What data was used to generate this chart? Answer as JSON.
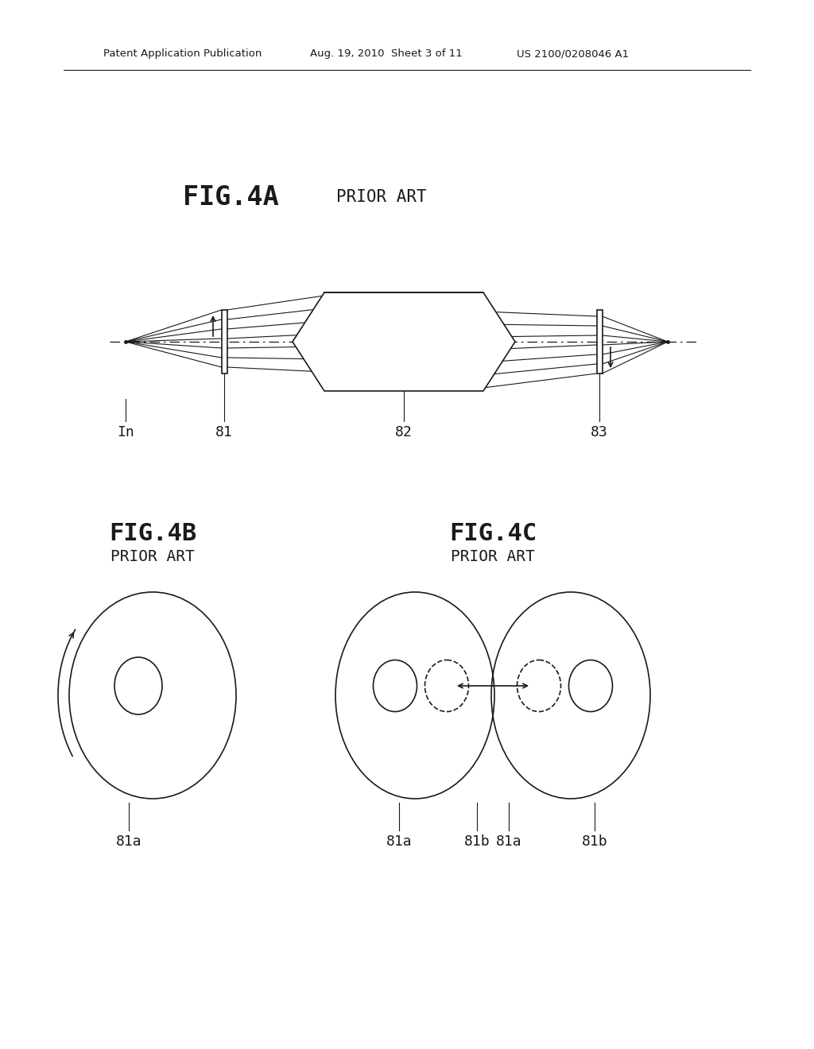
{
  "bg_color": "#ffffff",
  "header_left": "Patent Application Publication",
  "header_mid": "Aug. 19, 2010  Sheet 3 of 11",
  "header_right": "US 2100/0208046 A1",
  "fig4a_title": "FIG.4A",
  "fig4a_sub": "PRIOR ART",
  "fig4b_title": "FIG.4B",
  "fig4b_sub": "PRIOR ART",
  "fig4c_title": "FIG.4C",
  "fig4c_sub": "PRIOR ART",
  "lbl_In": "In",
  "lbl_81": "81",
  "lbl_82": "82",
  "lbl_83": "83",
  "lbl_81a": "81a",
  "lbl_81b": "81b"
}
